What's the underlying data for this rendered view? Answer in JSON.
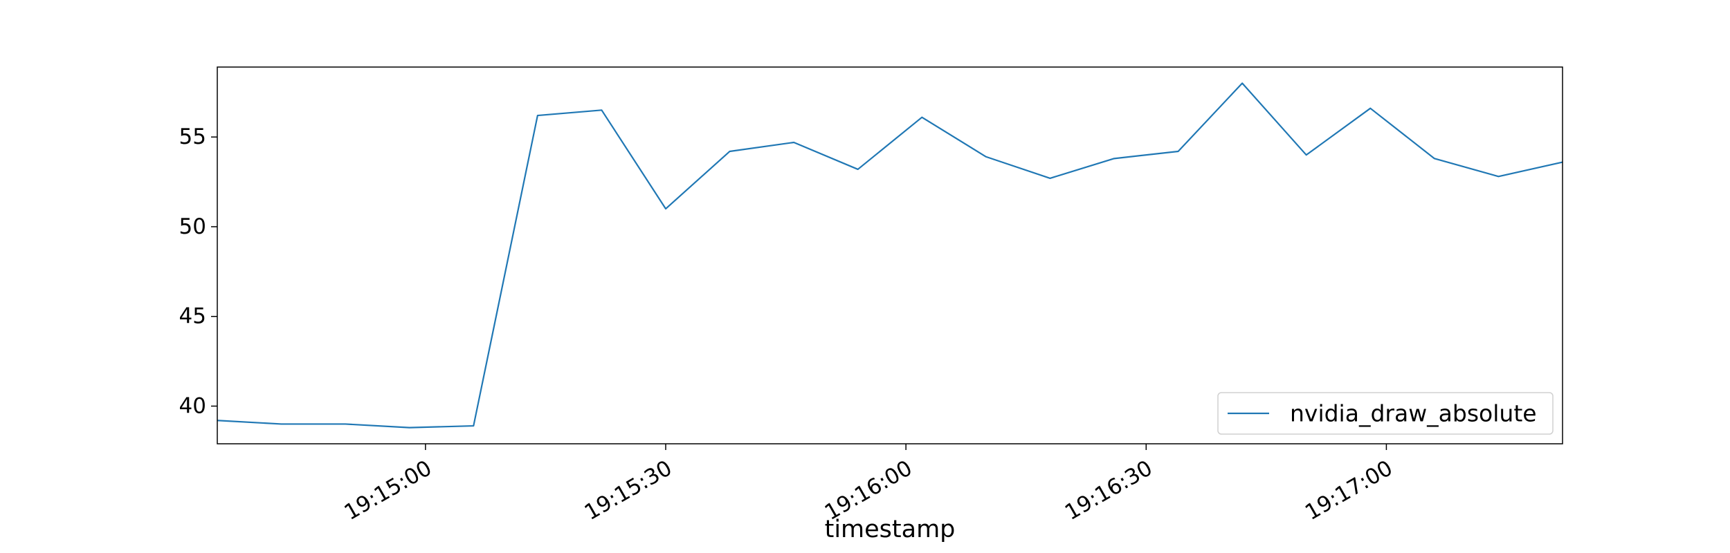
{
  "chart_data": {
    "type": "line",
    "title": "",
    "xlabel": "timestamp",
    "ylabel": "",
    "grid": false,
    "legend_position": "lower right",
    "x_ticks": [
      "19:15:00",
      "19:15:30",
      "19:16:00",
      "19:16:30",
      "19:17:00"
    ],
    "y_ticks": [
      40,
      45,
      50,
      55
    ],
    "xlim": [
      "19:14:34",
      "19:17:22"
    ],
    "ylim": [
      37.9,
      58.9
    ],
    "series": [
      {
        "name": "nvidia_draw_absolute",
        "color": "#1f77b4",
        "x": [
          "19:14:34",
          "19:14:42",
          "19:14:50",
          "19:14:58",
          "19:15:06",
          "19:15:14",
          "19:15:22",
          "19:15:30",
          "19:15:38",
          "19:15:46",
          "19:15:54",
          "19:16:02",
          "19:16:10",
          "19:16:18",
          "19:16:26",
          "19:16:34",
          "19:16:42",
          "19:16:50",
          "19:16:58",
          "19:17:06",
          "19:17:14",
          "19:17:22"
        ],
        "y": [
          39.2,
          39.0,
          39.0,
          38.8,
          38.9,
          56.2,
          56.5,
          51.0,
          54.2,
          54.7,
          53.2,
          56.1,
          53.9,
          52.7,
          53.8,
          54.2,
          58.0,
          54.0,
          56.6,
          53.8,
          52.8,
          53.6
        ]
      }
    ]
  }
}
